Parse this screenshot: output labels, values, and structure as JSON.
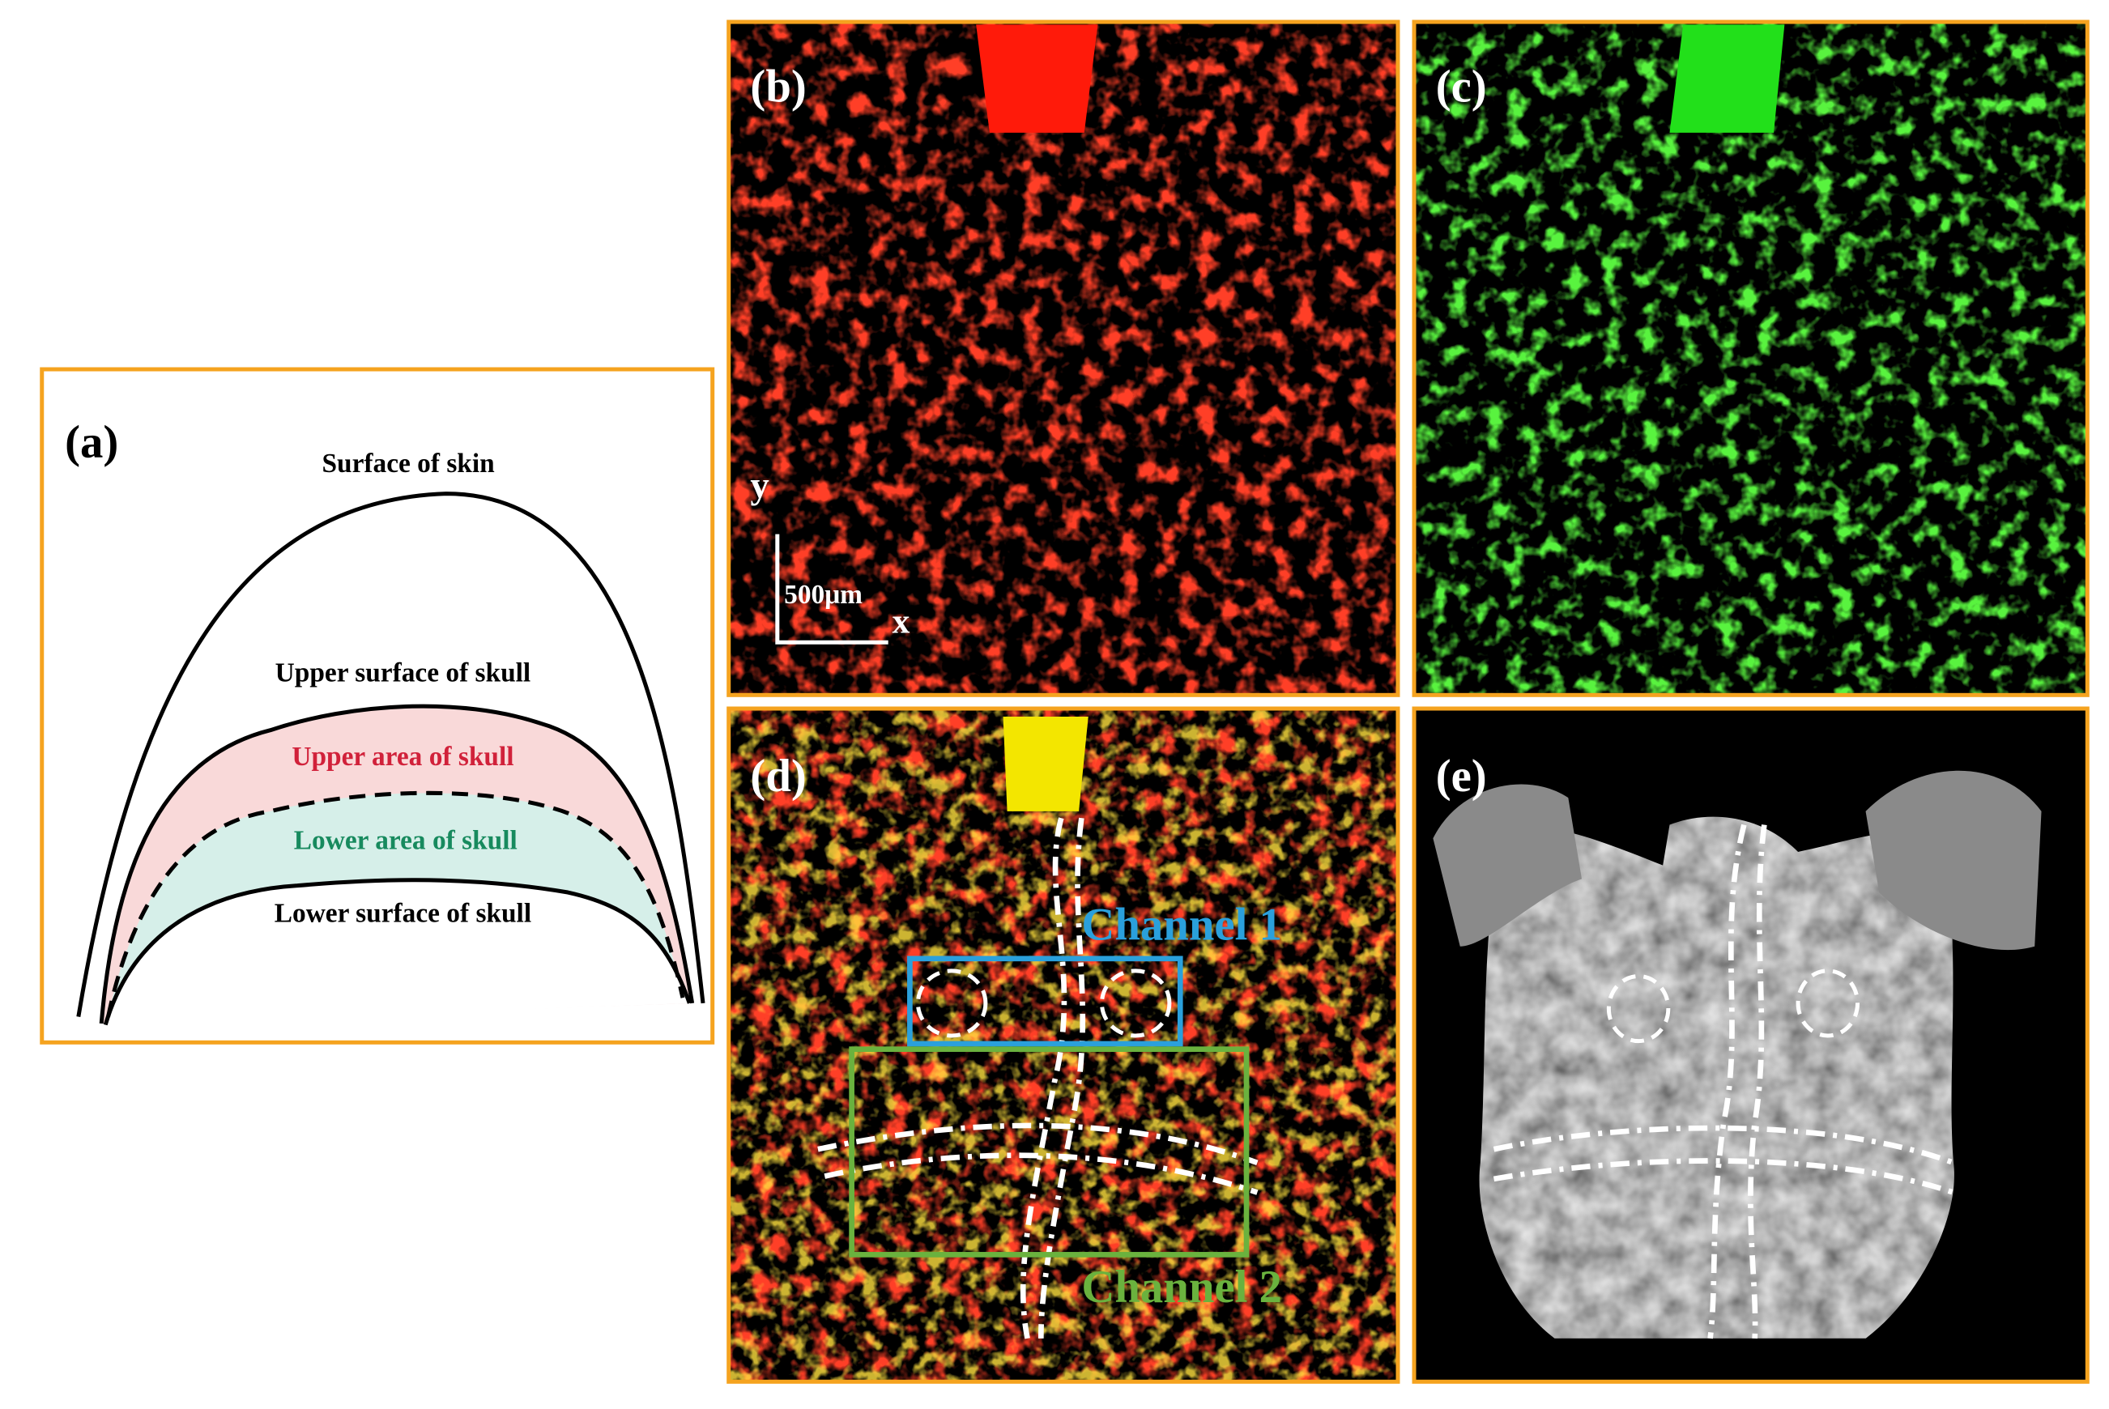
{
  "panel_a": {
    "label": "(a)",
    "surface_of_skin": "Surface of skin",
    "upper_surface": "Upper surface of skull",
    "upper_area": "Upper area of skull",
    "lower_area": "Lower area of skull",
    "lower_surface": "Lower surface of skull"
  },
  "panel_b": {
    "label": "(b)",
    "axis_y": "y",
    "scale_bar": "500μm",
    "axis_x": "x"
  },
  "panel_c": {
    "label": "(c)"
  },
  "panel_d": {
    "label": "(d)",
    "channel_1": "Channel 1",
    "channel_2": "Channel 2"
  },
  "panel_e": {
    "label": "(e)"
  }
}
